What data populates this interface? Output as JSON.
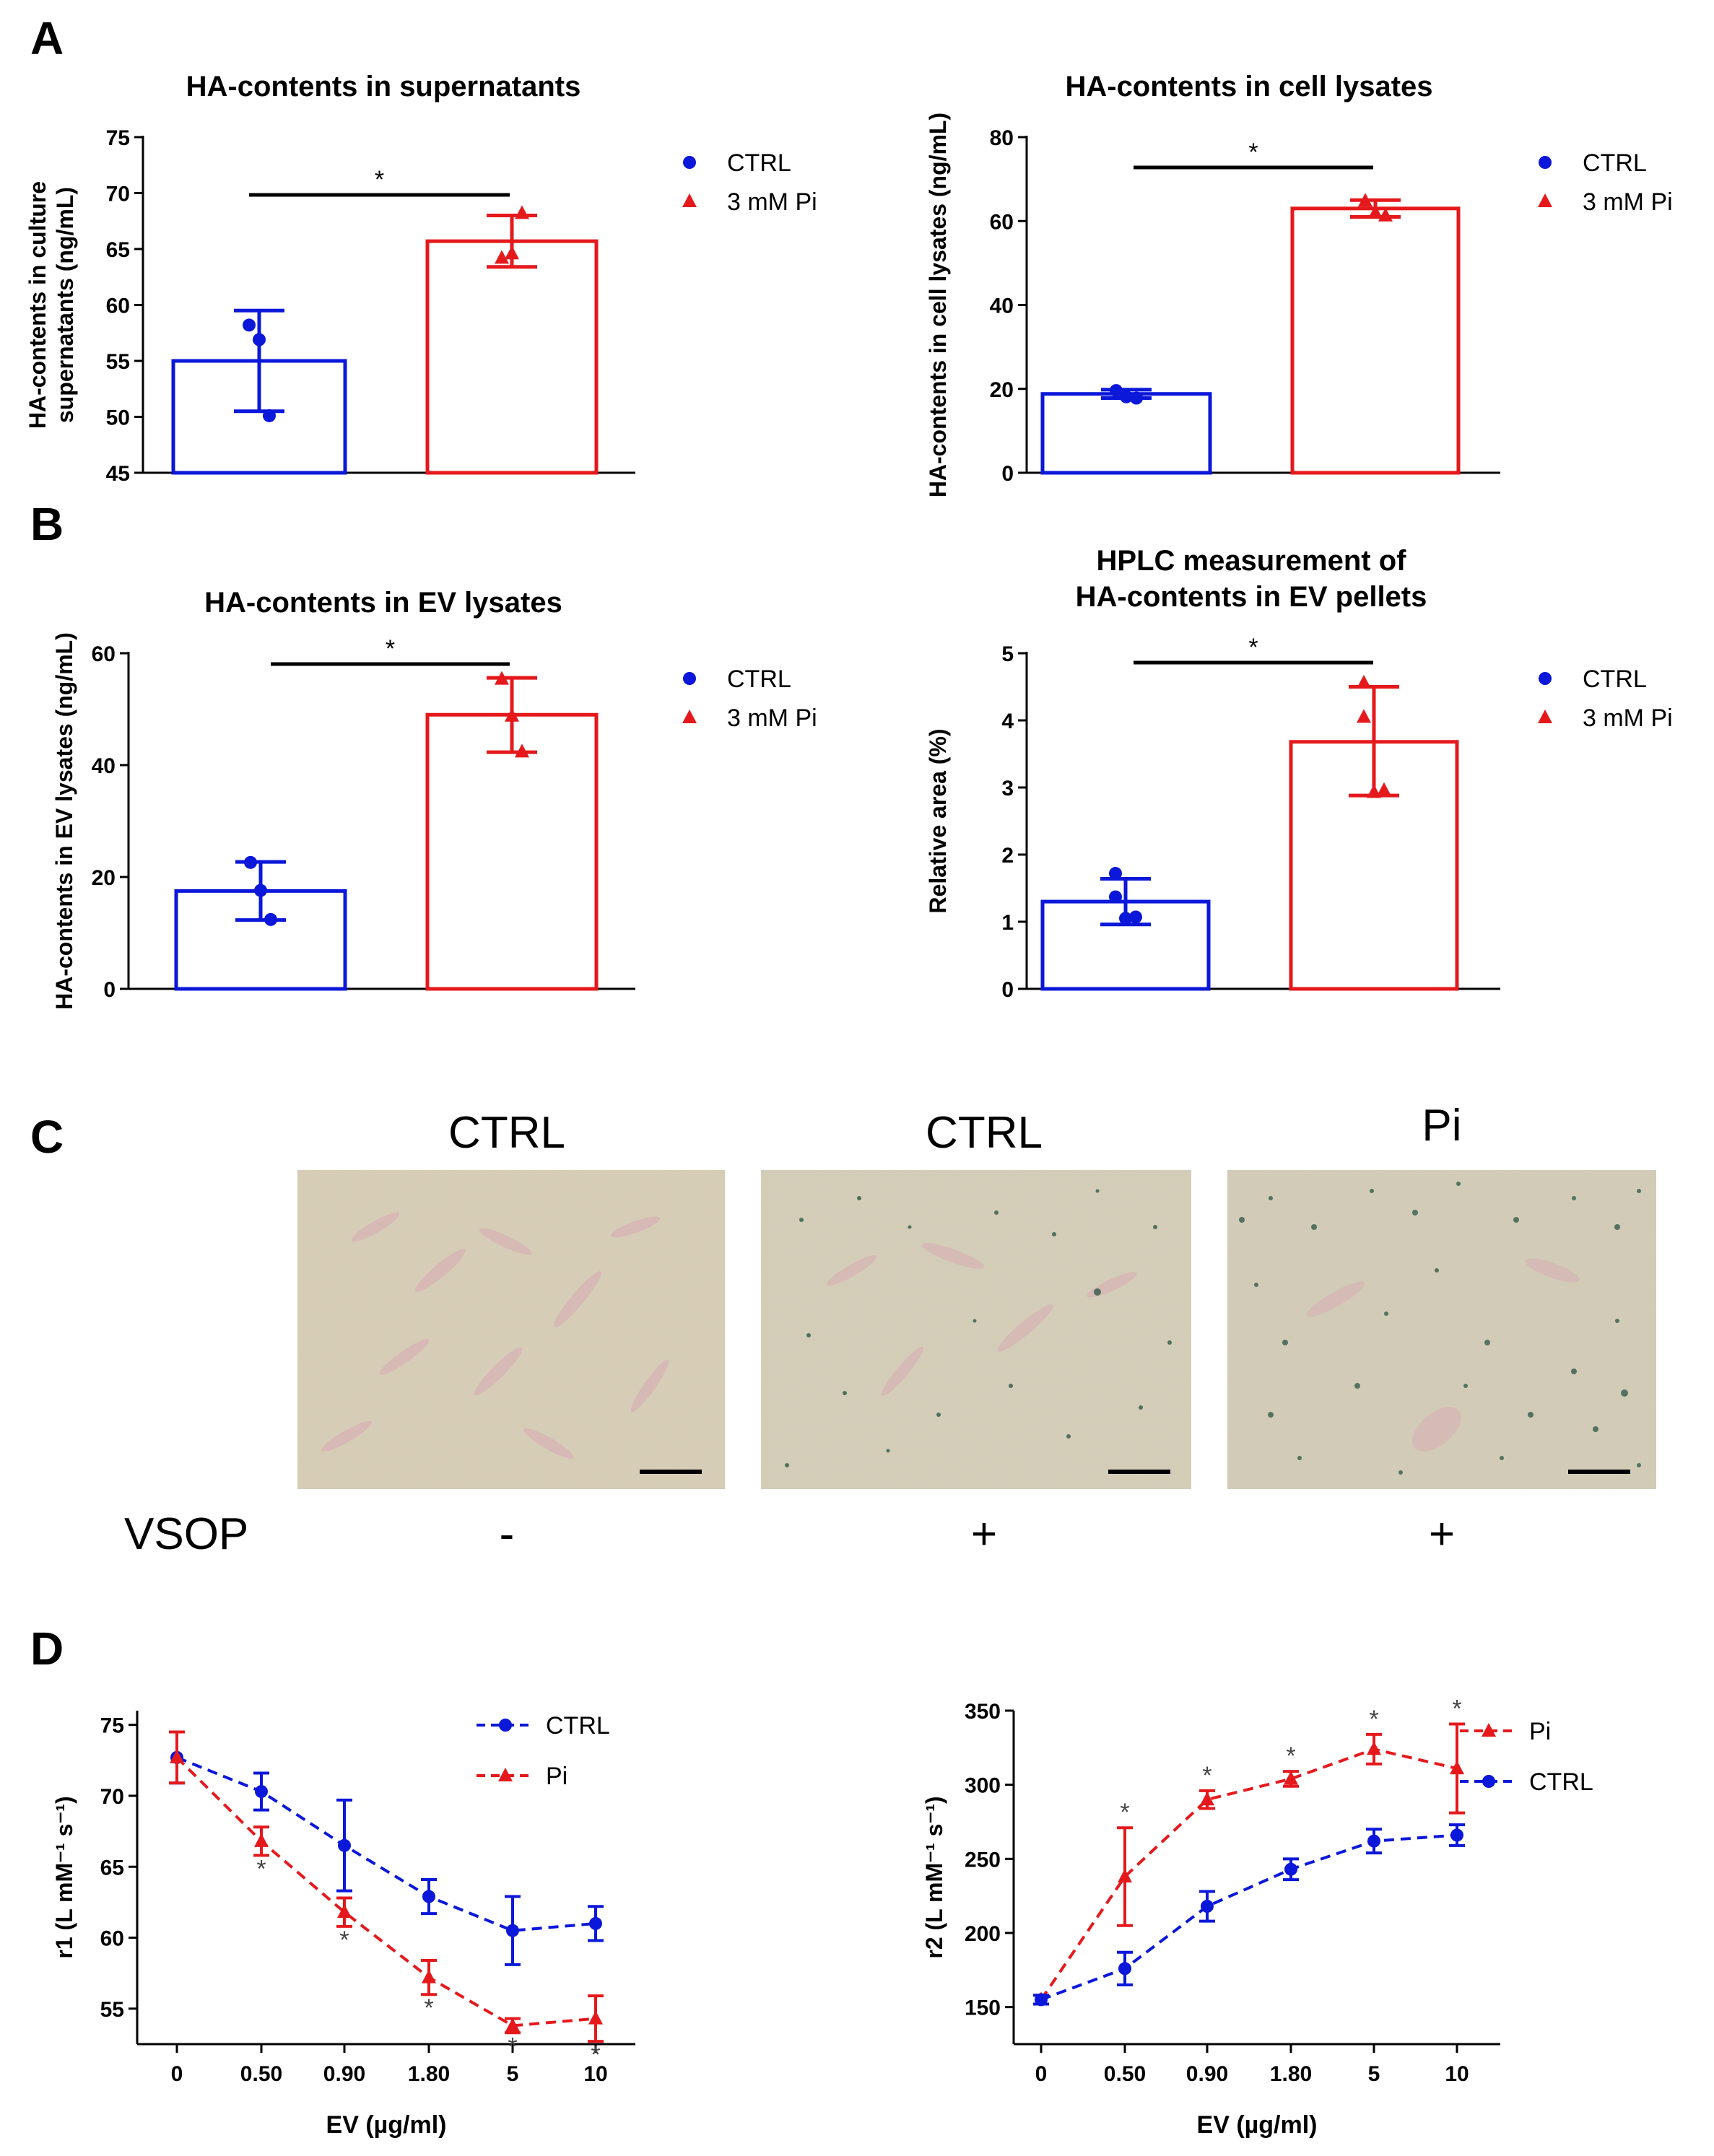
{
  "colors": {
    "ctrl": "#0b17d9",
    "pi": "#e5191c",
    "axis": "#000000"
  },
  "panel_labels": {
    "A": "A",
    "B": "B",
    "C": "C",
    "D": "D"
  },
  "chart_data": [
    {
      "type": "bar",
      "title": "HA-contents in supernatants",
      "ylabel_lines": [
        "HA-contents in culture",
        "supernatants (ng/mL)"
      ],
      "categories": [
        "CTRL",
        "3 mM Pi"
      ],
      "values": [
        55,
        65.7
      ],
      "errors": [
        [
          50.5,
          59.5
        ],
        [
          63.4,
          68.0
        ]
      ],
      "points": [
        [
          58.2,
          56.9,
          50.1
        ],
        [
          64.2,
          64.6,
          68.2
        ]
      ],
      "ylim": [
        45,
        75
      ],
      "yticks": [
        "45",
        "50",
        "55",
        "60",
        "65",
        "70",
        "75"
      ],
      "significance": "*",
      "legend": [
        "CTRL",
        "3 mM Pi"
      ]
    },
    {
      "type": "bar",
      "title": "HA-contents in cell lysates",
      "ylabel_lines": [
        "HA-contents in cell lysates (ng/mL)"
      ],
      "categories": [
        "CTRL",
        "3 mM Pi"
      ],
      "values": [
        18.8,
        63
      ],
      "errors": [
        [
          17.8,
          19.8
        ],
        [
          61.0,
          65.0
        ]
      ],
      "points": [
        [
          19.6,
          18.1,
          17.8
        ],
        [
          64.8,
          62.0,
          61.3
        ]
      ],
      "ylim": [
        0,
        80
      ],
      "yticks": [
        "0",
        "20",
        "40",
        "60",
        "80"
      ],
      "significance": "*",
      "legend": [
        "CTRL",
        "3 mM Pi"
      ]
    },
    {
      "type": "bar",
      "title": "HA-contents in EV lysates",
      "ylabel_lines": [
        "HA-contents in EV lysates (ng/mL)"
      ],
      "categories": [
        "CTRL",
        "3 mM Pi"
      ],
      "values": [
        17.5,
        49
      ],
      "errors": [
        [
          12.3,
          22.7
        ],
        [
          42.3,
          55.6
        ]
      ],
      "points": [
        [
          22.6,
          17.6,
          12.4
        ],
        [
          55.4,
          48.8,
          42.4
        ]
      ],
      "ylim": [
        0,
        60
      ],
      "yticks": [
        "0",
        "20",
        "40",
        "60"
      ],
      "significance": "*",
      "legend": [
        "CTRL",
        "3 mM Pi"
      ]
    },
    {
      "type": "bar",
      "title_lines": [
        "HPLC measurement of",
        "HA-contents in EV pellets"
      ],
      "ylabel_lines": [
        "Relative area (%)"
      ],
      "categories": [
        "CTRL",
        "3 mM Pi"
      ],
      "values": [
        1.3,
        3.68
      ],
      "errors": [
        [
          0.96,
          1.64
        ],
        [
          2.88,
          4.5
        ]
      ],
      "points": [
        [
          1.72,
          1.05,
          1.07,
          1.37
        ],
        [
          4.56,
          2.93,
          2.96,
          4.05
        ]
      ],
      "ylim": [
        0,
        5
      ],
      "yticks": [
        "0",
        "1",
        "2",
        "3",
        "4",
        "5"
      ],
      "significance": "*",
      "legend": [
        "CTRL",
        "3 mM Pi"
      ]
    },
    {
      "type": "line",
      "ylabel": "r1 (L mM⁻¹ s⁻¹)",
      "xlabel": "EV (µg/ml)",
      "x": [
        "0",
        "0.50",
        "0.90",
        "1.80",
        "5",
        "10"
      ],
      "series": [
        {
          "name": "CTRL",
          "values": [
            72.7,
            70.3,
            66.5,
            62.9,
            60.5,
            61.0
          ],
          "errors": [
            1.8,
            1.3,
            3.2,
            1.2,
            2.4,
            1.2
          ]
        },
        {
          "name": "Pi",
          "values": [
            72.7,
            66.8,
            61.8,
            57.2,
            53.8,
            54.3
          ],
          "errors": [
            1.8,
            1.0,
            1.0,
            1.2,
            0.5,
            1.6
          ]
        }
      ],
      "ylim": [
        52.5,
        76
      ],
      "yticks": [
        "55",
        "60",
        "65",
        "70",
        "75"
      ],
      "significance": [
        "",
        "*",
        "*",
        "*",
        "*",
        "*"
      ],
      "legend": [
        "CTRL",
        "Pi"
      ]
    },
    {
      "type": "line",
      "ylabel": "r2 (L mM⁻¹ s⁻¹)",
      "xlabel": "EV (µg/ml)",
      "x": [
        "0",
        "0.50",
        "0.90",
        "1.80",
        "5",
        "10"
      ],
      "series": [
        {
          "name": "Pi",
          "values": [
            155,
            238,
            290,
            304,
            324,
            311
          ],
          "errors": [
            3,
            33,
            6,
            5,
            10,
            30
          ]
        },
        {
          "name": "CTRL",
          "values": [
            155,
            176,
            218,
            243,
            262,
            266
          ],
          "errors": [
            3,
            11,
            10,
            7,
            8,
            7
          ]
        }
      ],
      "ylim": [
        125,
        350
      ],
      "yticks": [
        "150",
        "200",
        "250",
        "300",
        "350"
      ],
      "significance": [
        "",
        "*",
        "*",
        "*",
        "*",
        "*"
      ],
      "legend": [
        "Pi",
        "CTRL"
      ]
    }
  ],
  "micrographs": {
    "labels": [
      "CTRL",
      "CTRL",
      "Pi"
    ],
    "vsop_label": "VSOP",
    "vsop_signs": [
      "-",
      "+",
      "+"
    ]
  }
}
